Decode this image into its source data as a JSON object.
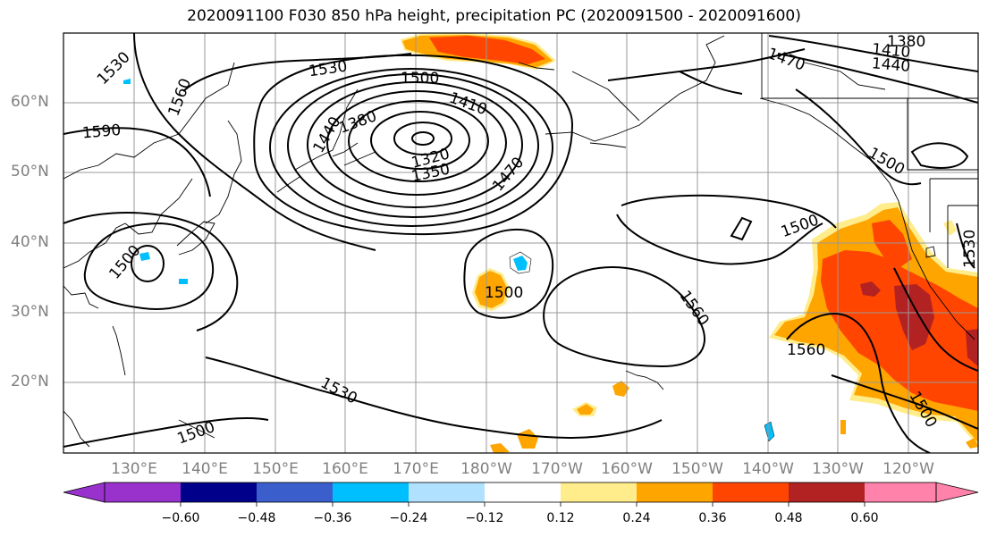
{
  "title": "2020091100 F030 850 hPa height, precipitation PC (2020091500 - 2020091600)",
  "lat_labels": [
    "60°N",
    "50°N",
    "40°N",
    "30°N",
    "20°N"
  ],
  "lon_labels": [
    "130°E",
    "140°E",
    "150°E",
    "160°E",
    "170°E",
    "180°W",
    "170°W",
    "160°W",
    "150°W",
    "140°W",
    "130°W",
    "120°W"
  ],
  "contour_labels": [
    "1530",
    "1560",
    "1590",
    "1530",
    "1500",
    "1410",
    "1440",
    "1380",
    "1320",
    "1350",
    "1470",
    "1470",
    "1410",
    "1440",
    "1380",
    "1500",
    "1500",
    "1560",
    "1560",
    "1500",
    "1530",
    "1500",
    "1500",
    "1530"
  ],
  "colorbar": {
    "labels": [
      "−0.60",
      "−0.48",
      "−0.36",
      "−0.24",
      "−0.12",
      "0.12",
      "0.24",
      "0.36",
      "0.48",
      "0.60"
    ],
    "colors": [
      "#9932cc",
      "#00008b",
      "#3a5fcd",
      "#00bfff",
      "#b0e2ff",
      "#ffffff",
      "#ffec8b",
      "#ffa500",
      "#ff4500",
      "#b22222",
      "#ff82ab"
    ]
  },
  "colors": {
    "frame": "#000000",
    "grid": "#999999",
    "contour": "#000000",
    "axis_text": "#808080"
  }
}
